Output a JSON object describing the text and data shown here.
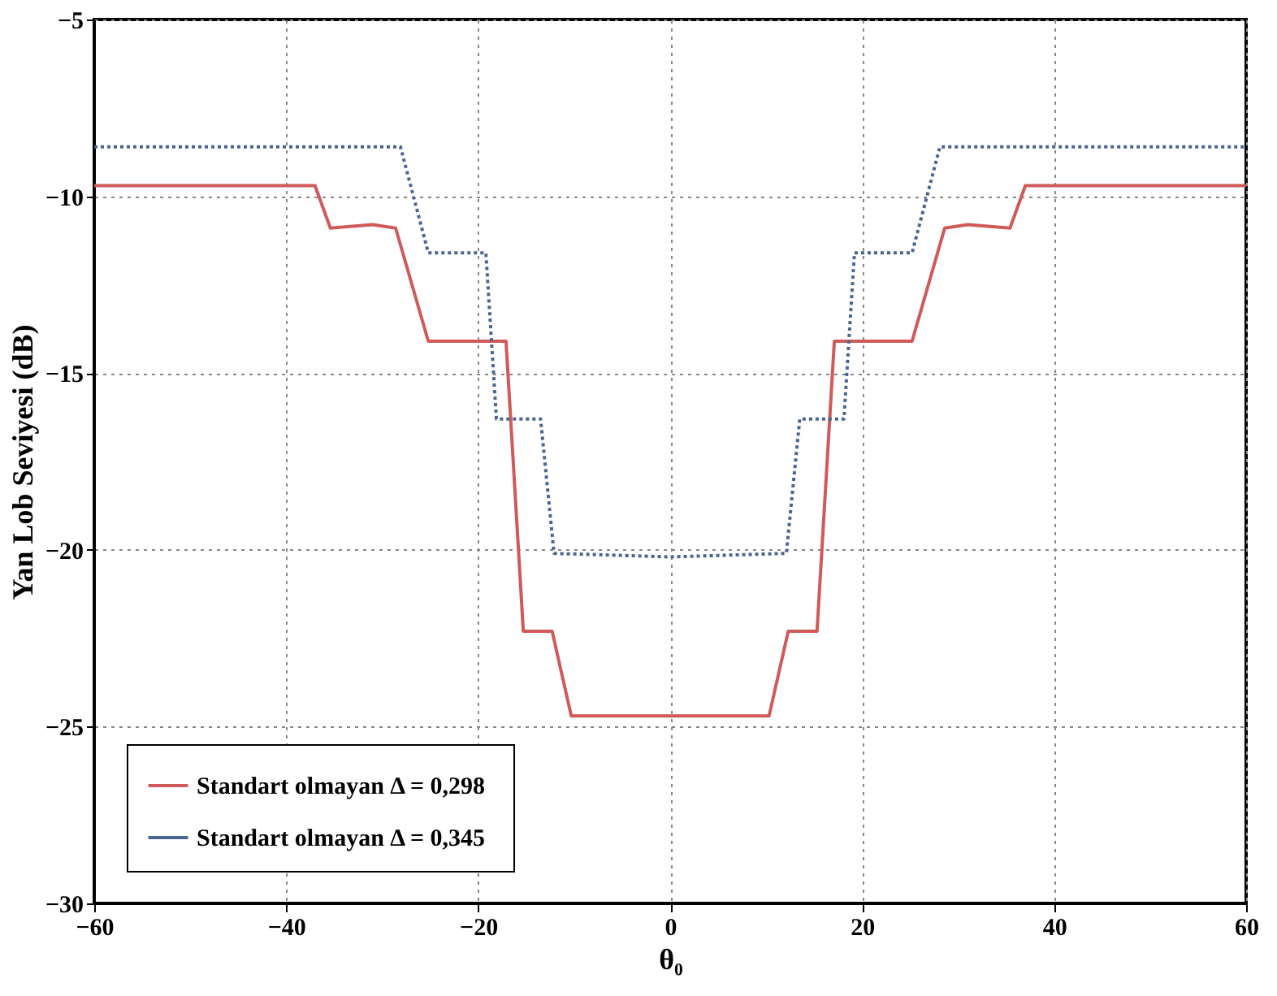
{
  "chart_data": {
    "type": "line",
    "xlabel": "θ₀",
    "ylabel": "Yan Lob Seviyesi  (dB)",
    "xlim": [
      -60,
      60
    ],
    "xticks": [
      -60,
      -40,
      -20,
      0,
      20,
      40,
      60
    ],
    "ylim": [
      -30,
      -5
    ],
    "yticks": [
      -30,
      -25,
      -20,
      -15,
      -10,
      -5
    ],
    "grid": true,
    "legend": "bottom left",
    "series": [
      {
        "name": "Standart olmayan  Δ = 0,298",
        "color": "#d05a5a",
        "line_style": "solid",
        "x": [
          -60,
          -37,
          -35.4,
          -31,
          -28.6,
          -25.2,
          -17.1,
          -15.3,
          -12.3,
          -10.3,
          0,
          10.3,
          12.3,
          15.3,
          17.1,
          25.2,
          28.6,
          31,
          35.4,
          37,
          60
        ],
        "values": [
          -9.7,
          -9.7,
          -10.9,
          -10.8,
          -10.9,
          -14.1,
          -14.1,
          -22.3,
          -22.3,
          -24.7,
          -24.7,
          -24.7,
          -22.3,
          -22.3,
          -14.1,
          -14.1,
          -10.9,
          -10.8,
          -10.9,
          -9.7,
          -9.7
        ]
      },
      {
        "name": "Standart olmayan  Δ = 0,345",
        "color": "#4a6590",
        "line_style": "dotted",
        "x": [
          -60,
          -28.1,
          -25.2,
          -19.2,
          -18.1,
          -13.5,
          -12.1,
          0,
          12.1,
          13.5,
          18.1,
          19.2,
          25.2,
          28.1,
          60
        ],
        "values": [
          -8.6,
          -8.6,
          -11.6,
          -11.6,
          -16.3,
          -16.3,
          -20.1,
          -20.2,
          -20.1,
          -16.3,
          -16.3,
          -11.6,
          -11.6,
          -8.6,
          -8.6
        ]
      }
    ]
  }
}
